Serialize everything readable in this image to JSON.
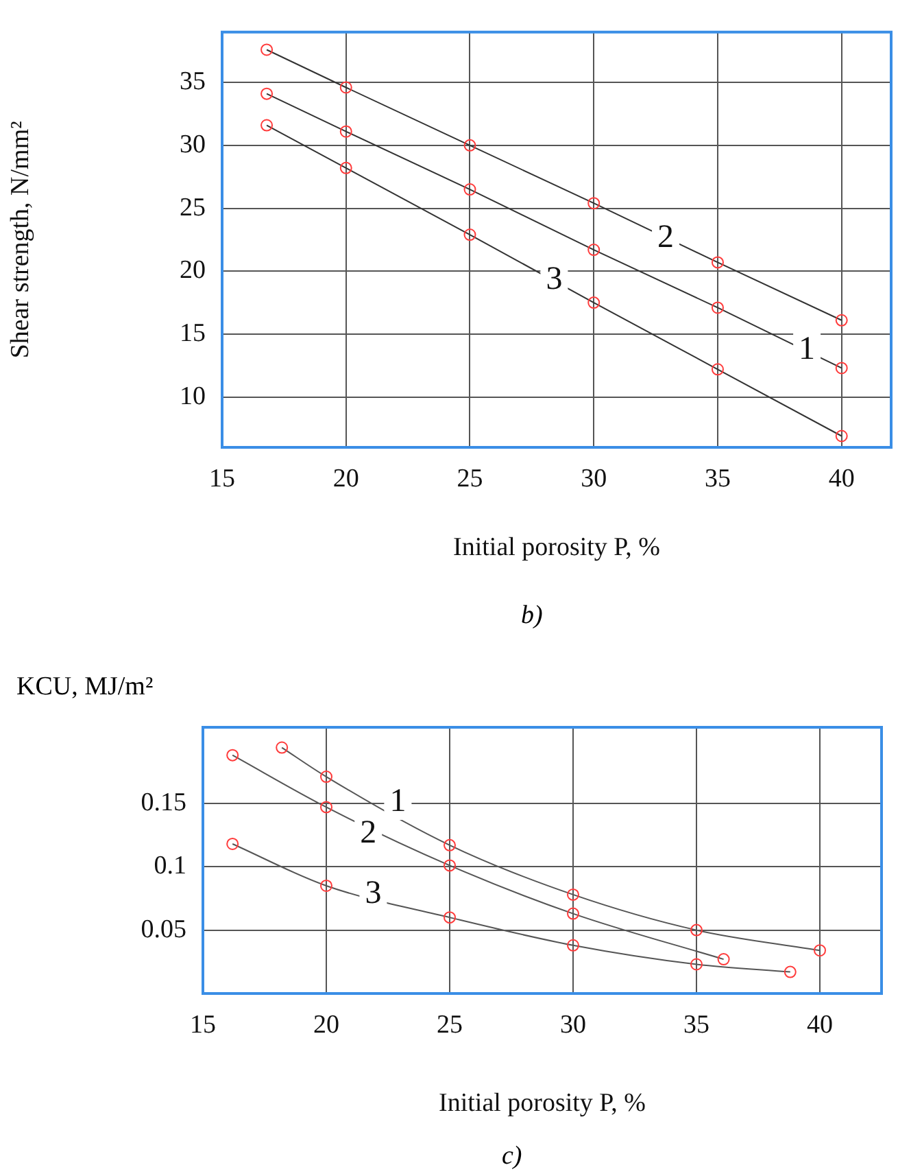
{
  "chart_data": [
    {
      "type": "line",
      "xlabel": "Initial porosity P, %",
      "ylabel": "Shear strength, N/mm²",
      "marker": "circle",
      "grid": true,
      "line_style": "solid",
      "xlim": [
        15,
        42
      ],
      "xticks": [
        15,
        20,
        25,
        30,
        35,
        40
      ],
      "ylim": [
        6,
        39
      ],
      "yticks": [
        10,
        15,
        20,
        25,
        30,
        35
      ],
      "series": [
        {
          "color": "#333333",
          "x": [
            16.8,
            20,
            25,
            30,
            35,
            40
          ],
          "values": [
            34.1,
            31.1,
            26.5,
            21.7,
            17.1,
            12.3
          ]
        },
        {
          "color": "#333333",
          "x": [
            16.8,
            20,
            25,
            30,
            35,
            40
          ],
          "values": [
            37.6,
            34.6,
            30.0,
            25.4,
            20.7,
            16.1
          ]
        },
        {
          "color": "#333333",
          "x": [
            16.8,
            20,
            25,
            30,
            35,
            40
          ],
          "values": [
            31.6,
            28.2,
            22.9,
            17.5,
            12.2,
            6.9
          ]
        }
      ],
      "annotations": [
        {
          "text": "1",
          "x": 38.6,
          "y": 13.7
        },
        {
          "text": "2",
          "x": 32.9,
          "y": 22.6
        },
        {
          "text": "3",
          "x": 28.4,
          "y": 19.3
        },
        "b)"
      ]
    },
    {
      "type": "line",
      "xlabel": "Initial porosity P, %",
      "ylabel": "KCU, MJ/m²",
      "marker": "circle",
      "grid": true,
      "line_style": "solid",
      "xlim": [
        15,
        42.5
      ],
      "xticks": [
        15,
        20,
        25,
        30,
        35,
        40
      ],
      "ylim": [
        0,
        0.21
      ],
      "yticks": [
        0.05,
        0.1,
        0.15
      ],
      "series": [
        {
          "color": "#555555",
          "x": [
            18.2,
            20,
            25,
            30,
            35,
            40
          ],
          "values": [
            0.194,
            0.171,
            0.117,
            0.078,
            0.05,
            0.034
          ]
        },
        {
          "color": "#555555",
          "x": [
            16.2,
            20,
            25,
            30,
            36.1
          ],
          "values": [
            0.188,
            0.147,
            0.101,
            0.063,
            0.027
          ]
        },
        {
          "color": "#555555",
          "x": [
            16.2,
            20,
            25,
            30,
            35,
            38.8
          ],
          "values": [
            0.118,
            0.085,
            0.06,
            0.038,
            0.023,
            0.017
          ]
        }
      ],
      "annotations": [
        {
          "text": "1",
          "x": 22.9,
          "y": 0.151
        },
        {
          "text": "2",
          "x": 21.7,
          "y": 0.126
        },
        {
          "text": "3",
          "x": 21.9,
          "y": 0.078
        },
        "c)"
      ]
    }
  ]
}
